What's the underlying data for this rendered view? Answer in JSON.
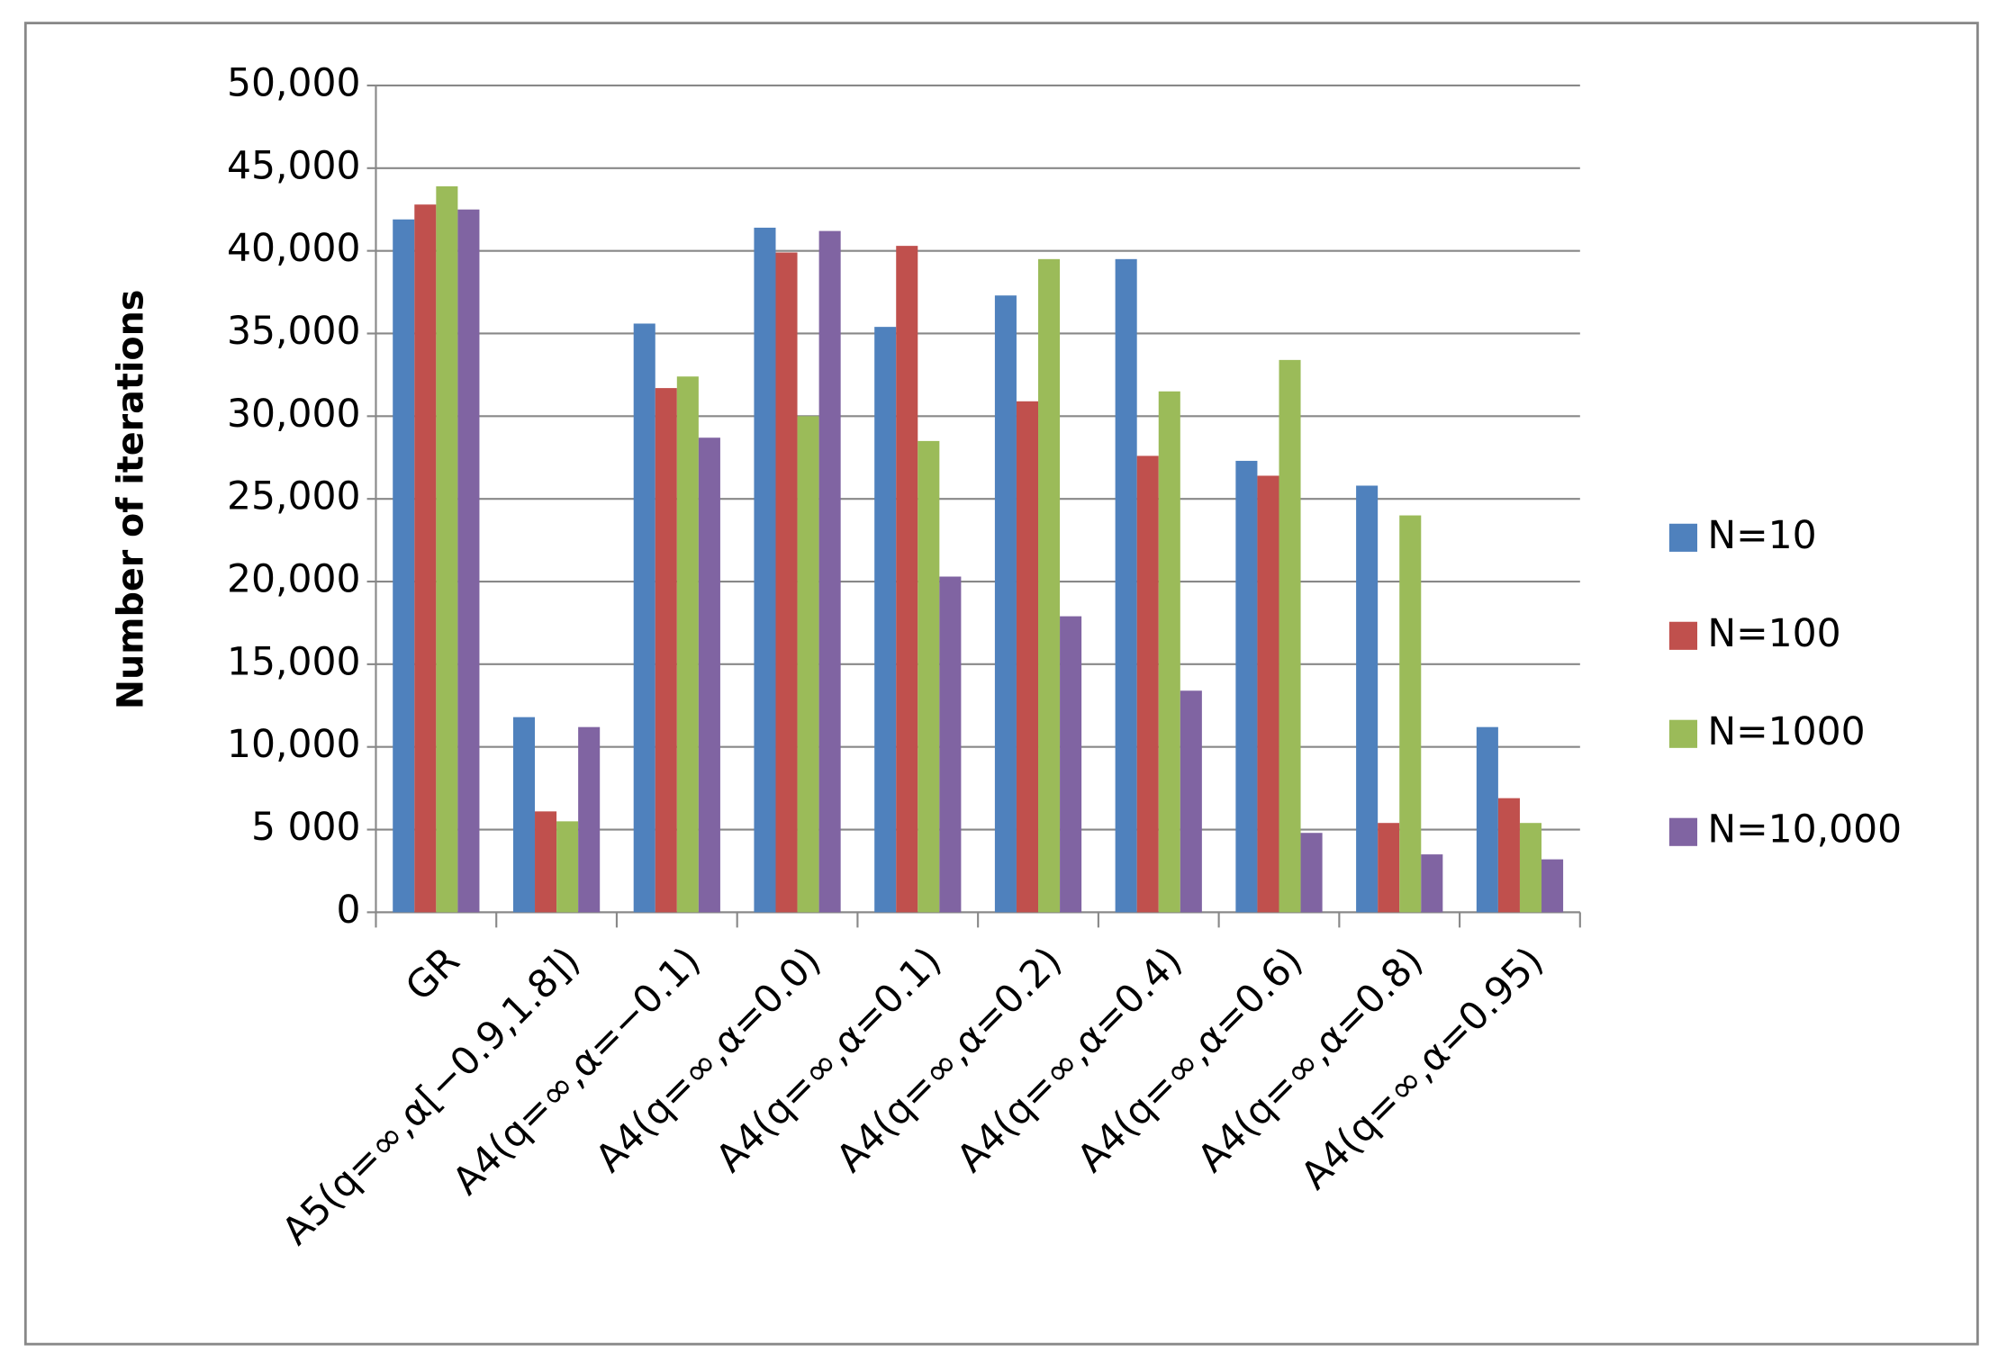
{
  "chart_data": {
    "type": "bar",
    "y_label": "Number of iterations",
    "categories": [
      "GR",
      "A5(q=∞,α[−0.9,1.8])",
      "A4(q=∞,α=−0.1)",
      "A4(q=∞,α=0.0)",
      "A4(q=∞,α=0.1)",
      "A4(q=∞,α=0.2)",
      "A4(q=∞,α=0.4)",
      "A4(q=∞,α=0.6)",
      "A4(q=∞,α=0.8)",
      "A4(q=∞,α=0.95)"
    ],
    "series": [
      {
        "name": "N=10",
        "color": "#4f81bd",
        "values": [
          41900,
          11800,
          35600,
          41400,
          35400,
          37300,
          39500,
          27300,
          25800,
          11200
        ]
      },
      {
        "name": "N=100",
        "color": "#c0504d",
        "values": [
          42800,
          6100,
          31700,
          39900,
          40300,
          30900,
          27600,
          26400,
          5400,
          6900
        ]
      },
      {
        "name": "N=1000",
        "color": "#9bbb59",
        "values": [
          43900,
          5500,
          32400,
          30000,
          28500,
          39500,
          31500,
          33400,
          24000,
          5400
        ]
      },
      {
        "name": "N=10,000",
        "color": "#8064a2",
        "values": [
          42500,
          11200,
          28700,
          41200,
          20300,
          17900,
          13400,
          4800,
          3500,
          3200
        ]
      }
    ],
    "ylim": [
      0,
      50000
    ],
    "yticks": [
      0,
      {
        "value": 5000,
        "label": "5 000"
      },
      {
        "value": 10000,
        "label": "10,000"
      },
      {
        "value": 15000,
        "label": "15,000"
      },
      {
        "value": 20000,
        "label": "20,000"
      },
      {
        "value": 25000,
        "label": "25,000"
      },
      {
        "value": 30000,
        "label": "30,000"
      },
      {
        "value": 35000,
        "label": "35,000"
      },
      {
        "value": 40000,
        "label": "40,000"
      },
      {
        "value": 45000,
        "label": "45,000"
      },
      {
        "value": 50000,
        "label": "50,000"
      }
    ],
    "grid": true,
    "legend": "right"
  }
}
